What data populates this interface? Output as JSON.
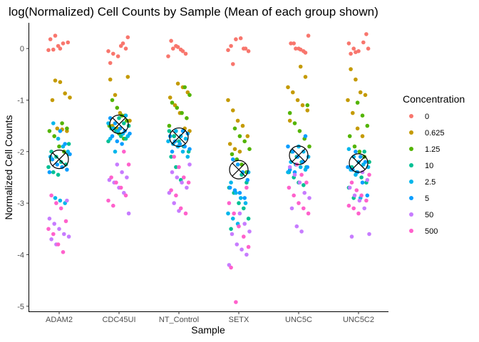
{
  "chart_data": {
    "type": "scatter",
    "title": "log(Normalized) Cell Counts by Sample (Mean of each group shown)",
    "xlabel": "Sample",
    "ylabel": "Normalized Cell Counts",
    "categories": [
      "ADAM2",
      "CDC45UI",
      "NT_Control",
      "SETX",
      "UNC5C",
      "UNC5C2"
    ],
    "yticks": [
      "0",
      "-1",
      "-2",
      "-3",
      "-4",
      "-5"
    ],
    "ylim": [
      -5.1,
      0.5
    ],
    "legend": {
      "title": "Concentration",
      "position": "right",
      "levels": [
        {
          "label": "0",
          "color": "#F8766D"
        },
        {
          "label": "0.625",
          "color": "#C49A00"
        },
        {
          "label": "1.25",
          "color": "#53B400"
        },
        {
          "label": "10",
          "color": "#00C094"
        },
        {
          "label": "2.5",
          "color": "#00B6EB"
        },
        {
          "label": "5",
          "color": "#0A9EFF"
        },
        {
          "label": "50",
          "color": "#C77CFF"
        },
        {
          "label": "500",
          "color": "#FF61CC"
        }
      ]
    },
    "means": [
      -2.15,
      -1.47,
      -1.72,
      -2.35,
      -2.07,
      -2.22
    ],
    "series": [
      {
        "name": "0",
        "values": [
          [
            -0.03,
            -0.02,
            0.05,
            0.1,
            0.12,
            0.18,
            0.25,
            0.0
          ],
          [
            0.05,
            0.0,
            -0.05,
            -0.1,
            -0.15,
            0.1,
            0.22,
            -0.28
          ],
          [
            0.15,
            0.05,
            -0.02,
            -0.1,
            -0.15,
            0.0,
            0.03,
            -0.05
          ],
          [
            0.0,
            -0.05,
            0.05,
            0.18,
            0.2,
            0.0,
            -0.03,
            -0.3
          ],
          [
            0.1,
            0.0,
            -0.05,
            0.25,
            0.1,
            0.0,
            -0.02,
            -0.08
          ],
          [
            0.28,
            0.1,
            0.0,
            -0.05,
            0.12,
            0.0,
            -0.1,
            -0.07
          ]
        ]
      },
      {
        "name": "0.625",
        "values": [
          [
            -0.62,
            -0.65,
            -0.87,
            -0.95,
            -1.0,
            -1.55,
            -1.57,
            -1.6
          ],
          [
            -0.55,
            -0.6,
            -0.9,
            -1.25,
            -1.3,
            -1.4,
            -1.5,
            -1.55
          ],
          [
            -0.68,
            -0.75,
            -0.85,
            -0.95,
            -1.1,
            -1.25,
            -1.55,
            -1.6
          ],
          [
            -1.0,
            -1.2,
            -1.4,
            -1.5,
            -1.7,
            -1.85,
            -1.95,
            -2.0
          ],
          [
            -0.35,
            -0.55,
            -0.75,
            -0.85,
            -1.0,
            -1.1,
            -1.2,
            -1.4
          ],
          [
            -0.4,
            -0.6,
            -0.85,
            -0.9,
            -1.0,
            -1.25,
            -1.55,
            -1.7
          ]
        ]
      },
      {
        "name": "1.25",
        "values": [
          [
            -1.45,
            -1.55,
            -1.6,
            -1.7,
            -1.9,
            -2.0,
            -2.05,
            -2.15
          ],
          [
            -1.0,
            -1.15,
            -1.3,
            -1.4,
            -1.5,
            -1.55,
            -1.65,
            -1.75
          ],
          [
            -0.75,
            -0.9,
            -1.05,
            -1.15,
            -1.25,
            -1.35,
            -1.5,
            -1.7
          ],
          [
            -1.55,
            -1.7,
            -1.8,
            -1.95,
            -2.05,
            -2.15,
            -2.25,
            -2.4
          ],
          [
            -1.1,
            -1.25,
            -1.45,
            -1.6,
            -1.75,
            -1.9,
            -2.0,
            -2.1
          ],
          [
            -1.05,
            -1.3,
            -1.5,
            -1.7,
            -1.9,
            -2.0,
            -2.1,
            -2.2
          ]
        ]
      },
      {
        "name": "10",
        "values": [
          [
            -1.85,
            -2.0,
            -2.1,
            -2.2,
            -2.25,
            -2.3,
            -2.4,
            -2.45
          ],
          [
            -1.35,
            -1.45,
            -1.5,
            -1.55,
            -1.6,
            -1.7,
            -1.75,
            -1.8
          ],
          [
            -1.6,
            -1.7,
            -1.8,
            -1.9,
            -2.0,
            -2.1,
            -2.3,
            -2.55
          ],
          [
            -2.45,
            -2.6,
            -2.7,
            -2.8,
            -3.0,
            -3.1,
            -3.3,
            -3.5
          ],
          [
            -2.0,
            -2.1,
            -2.2,
            -2.3,
            -2.4,
            -2.5,
            -2.6,
            -2.65
          ],
          [
            -2.0,
            -2.2,
            -2.3,
            -2.4,
            -2.5,
            -2.6,
            -2.7,
            -2.9
          ]
        ]
      },
      {
        "name": "2.5",
        "values": [
          [
            -1.45,
            -1.75,
            -1.9,
            -2.0,
            -2.1,
            -2.9,
            -2.95,
            -3.0
          ],
          [
            -1.3,
            -1.45,
            -1.55,
            -1.6,
            -1.65,
            -1.7,
            -1.75,
            -2.0
          ],
          [
            -1.6,
            -1.7,
            -1.75,
            -1.8,
            -1.85,
            -1.9,
            -2.0,
            -2.1
          ],
          [
            -2.4,
            -2.6,
            -2.8,
            -2.9,
            -3.0,
            -3.2,
            -3.3,
            -3.4
          ],
          [
            -1.9,
            -2.0,
            -2.1,
            -2.2,
            -2.25,
            -2.3,
            -2.35,
            -2.4
          ],
          [
            -1.95,
            -2.1,
            -2.2,
            -2.25,
            -2.3,
            -2.35,
            -2.45,
            -2.9
          ]
        ]
      },
      {
        "name": "5",
        "values": [
          [
            -1.6,
            -1.85,
            -2.05,
            -2.15,
            -2.25,
            -2.3,
            -2.35,
            -2.4
          ],
          [
            -1.35,
            -1.45,
            -1.55,
            -1.6,
            -1.65,
            -1.7,
            -1.8,
            -1.85
          ],
          [
            -1.6,
            -1.65,
            -1.7,
            -1.8,
            -1.85,
            -1.9,
            -1.95,
            -2.0
          ],
          [
            -2.15,
            -2.25,
            -2.4,
            -2.55,
            -2.7,
            -2.75,
            -2.8,
            -2.9
          ],
          [
            -1.7,
            -1.9,
            -2.0,
            -2.1,
            -2.2,
            -2.3,
            -2.35,
            -2.4
          ],
          [
            -2.0,
            -2.1,
            -2.2,
            -2.3,
            -2.35,
            -2.4,
            -2.6,
            -2.85
          ]
        ]
      },
      {
        "name": "50",
        "values": [
          [
            -2.95,
            -3.3,
            -3.4,
            -3.5,
            -3.6,
            -3.65,
            -3.7,
            -3.8
          ],
          [
            -2.25,
            -2.4,
            -2.5,
            -2.55,
            -2.6,
            -2.7,
            -2.8,
            -3.2
          ],
          [
            -2.25,
            -2.4,
            -2.5,
            -2.6,
            -2.7,
            -2.8,
            -3.0,
            -3.15
          ],
          [
            -3.2,
            -3.4,
            -3.55,
            -3.6,
            -3.8,
            -3.9,
            -4.0,
            -4.2
          ],
          [
            -2.3,
            -2.45,
            -2.6,
            -2.8,
            -2.9,
            -3.1,
            -3.45,
            -3.55
          ],
          [
            -2.4,
            -2.55,
            -2.7,
            -2.85,
            -2.95,
            -3.1,
            -3.6,
            -3.65
          ]
        ]
      },
      {
        "name": "500",
        "values": [
          [
            -2.85,
            -3.0,
            -3.1,
            -3.35,
            -3.5,
            -3.6,
            -3.8,
            -3.95
          ],
          [
            -2.0,
            -2.25,
            -2.5,
            -2.6,
            -2.7,
            -2.85,
            -2.95,
            -3.05
          ],
          [
            -2.1,
            -2.3,
            -2.5,
            -2.6,
            -2.75,
            -2.85,
            -3.1,
            -3.2
          ],
          [
            -2.7,
            -3.0,
            -3.2,
            -3.45,
            -3.65,
            -3.85,
            -4.25,
            -4.92
          ],
          [
            -2.25,
            -2.45,
            -2.6,
            -2.7,
            -2.85,
            -3.0,
            -3.1,
            -3.2
          ],
          [
            -2.45,
            -2.6,
            -2.75,
            -2.85,
            -2.95,
            -3.05,
            -3.1,
            -3.2
          ]
        ]
      }
    ]
  }
}
